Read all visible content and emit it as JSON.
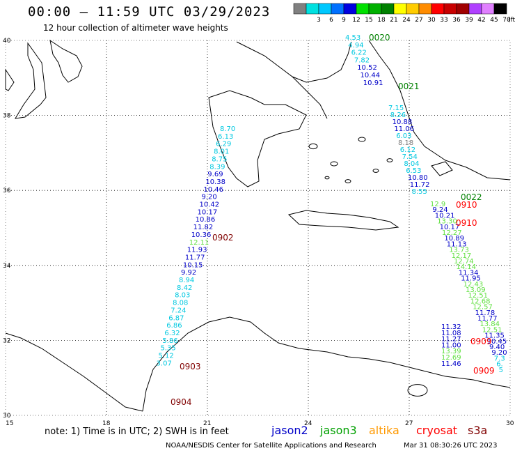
{
  "header": {
    "title": "00:00 – 11:59 UTC 03/29/2023",
    "subtitle": "12 hour collection of altimeter wave heights"
  },
  "legend_scale": {
    "unit": "(ft)",
    "bins": [
      {
        "label": "",
        "color": "#808080"
      },
      {
        "label": "3",
        "color": "#00e0e0"
      },
      {
        "label": "6",
        "color": "#00c8ff"
      },
      {
        "label": "9",
        "color": "#0070ff"
      },
      {
        "label": "12",
        "color": "#0000e0"
      },
      {
        "label": "15",
        "color": "#00e000"
      },
      {
        "label": "18",
        "color": "#00b000"
      },
      {
        "label": "21",
        "color": "#008000"
      },
      {
        "label": "24",
        "color": "#ffff00"
      },
      {
        "label": "27",
        "color": "#ffcc00"
      },
      {
        "label": "30",
        "color": "#ff8c00"
      },
      {
        "label": "33",
        "color": "#ff0000"
      },
      {
        "label": "36",
        "color": "#c80000"
      },
      {
        "label": "39",
        "color": "#a00000"
      },
      {
        "label": "42",
        "color": "#b040ff"
      },
      {
        "label": "45",
        "color": "#e080ff"
      },
      {
        "label": "70",
        "color": "#000000"
      }
    ]
  },
  "axes": {
    "lon_ticks": [
      "15",
      "18",
      "21",
      "24",
      "27",
      "30"
    ],
    "lat_ticks": [
      "40",
      "38",
      "36",
      "34",
      "32",
      "30"
    ]
  },
  "tracks": [
    {
      "name": "track-902",
      "time": "0902",
      "time_color": "#800000",
      "points": [
        {
          "v": "8.70",
          "c": "#00c8e0"
        },
        {
          "v": "6.13",
          "c": "#00c8e0"
        },
        {
          "v": "6.29",
          "c": "#00c8e0"
        },
        {
          "v": "8.01",
          "c": "#00c8e0"
        },
        {
          "v": "8.75",
          "c": "#00c8e0"
        },
        {
          "v": "8.39",
          "c": "#00c8e0"
        },
        {
          "v": "9.69",
          "c": "#0000c8"
        },
        {
          "v": "10.38",
          "c": "#0000c8"
        },
        {
          "v": "10.46",
          "c": "#0000c8"
        },
        {
          "v": "9.20",
          "c": "#0000c8"
        },
        {
          "v": "10.42",
          "c": "#0000c8"
        },
        {
          "v": "10.17",
          "c": "#0000c8"
        },
        {
          "v": "10.86",
          "c": "#0000c8"
        },
        {
          "v": "11.82",
          "c": "#0000c8"
        },
        {
          "v": "10.36",
          "c": "#0000c8"
        },
        {
          "v": "12.11",
          "c": "#60e040"
        },
        {
          "v": "11.93",
          "c": "#0000c8"
        },
        {
          "v": "11.77",
          "c": "#0000c8"
        },
        {
          "v": "10.15",
          "c": "#0000c8"
        },
        {
          "v": "9.92",
          "c": "#0000c8"
        },
        {
          "v": "8.94",
          "c": "#00c8e0"
        },
        {
          "v": "8.42",
          "c": "#00c8e0"
        },
        {
          "v": "8.03",
          "c": "#00c8e0"
        },
        {
          "v": "8.08",
          "c": "#00c8e0"
        },
        {
          "v": "7.24",
          "c": "#00c8e0"
        },
        {
          "v": "6.87",
          "c": "#00c8e0"
        },
        {
          "v": "6.86",
          "c": "#00c8e0"
        },
        {
          "v": "6.32",
          "c": "#00c8e0"
        },
        {
          "v": "5.86",
          "c": "#00c8e0"
        },
        {
          "v": "5.35",
          "c": "#00c8e0"
        },
        {
          "v": "5.12",
          "c": "#00c8e0"
        },
        {
          "v": "3.07",
          "c": "#00c8e0"
        }
      ]
    },
    {
      "name": "track-903",
      "time": "0903",
      "time_color": "#800000",
      "points": []
    },
    {
      "name": "track-904",
      "time": "0904",
      "time_color": "#800000",
      "points": []
    },
    {
      "name": "track-020",
      "time": "0020",
      "time_color": "#008000",
      "points": [
        {
          "v": "4.53",
          "c": "#00c8e0"
        },
        {
          "v": "4.94",
          "c": "#00c8e0"
        },
        {
          "v": "6.22",
          "c": "#00c8e0"
        },
        {
          "v": "7.82",
          "c": "#00c8e0"
        },
        {
          "v": "10.52",
          "c": "#0000c8"
        },
        {
          "v": "10.44",
          "c": "#0000c8"
        },
        {
          "v": "10.91",
          "c": "#0000c8"
        }
      ]
    },
    {
      "name": "track-021",
      "time": "0021",
      "time_color": "#008000",
      "points": [
        {
          "v": "7.15",
          "c": "#00c8e0"
        },
        {
          "v": "8.26",
          "c": "#00c8e0"
        },
        {
          "v": "10.88",
          "c": "#0000c8"
        },
        {
          "v": "11.06",
          "c": "#0000c8"
        },
        {
          "v": "6.03",
          "c": "#00c8e0"
        },
        {
          "v": "8.18",
          "c": "#808080"
        },
        {
          "v": "6.12",
          "c": "#00c8e0"
        },
        {
          "v": "7.54",
          "c": "#00c8e0"
        },
        {
          "v": "8.04",
          "c": "#00c8e0"
        },
        {
          "v": "6.53",
          "c": "#00c8e0"
        },
        {
          "v": "10.80",
          "c": "#0000c8"
        },
        {
          "v": "11.72",
          "c": "#0000c8"
        },
        {
          "v": "8.55",
          "c": "#00c8e0"
        }
      ]
    },
    {
      "name": "track-022",
      "time": "0022",
      "time_color": "#008000",
      "points": [
        {
          "v": "12.9",
          "c": "#60e040"
        },
        {
          "v": "9.24",
          "c": "#0000c8"
        },
        {
          "v": "10.21",
          "c": "#0000c8"
        },
        {
          "v": "13.30",
          "c": "#60e040"
        },
        {
          "v": "10.17",
          "c": "#0000c8"
        },
        {
          "v": "12.27",
          "c": "#60e040"
        },
        {
          "v": "10.89",
          "c": "#0000c8"
        },
        {
          "v": "11.13",
          "c": "#0000c8"
        },
        {
          "v": "13.73",
          "c": "#60e040"
        },
        {
          "v": "12.17",
          "c": "#60e040"
        },
        {
          "v": "12.74",
          "c": "#60e040"
        },
        {
          "v": "14.14",
          "c": "#60e040"
        },
        {
          "v": "11.34",
          "c": "#0000c8"
        },
        {
          "v": "11.95",
          "c": "#0000c8"
        },
        {
          "v": "12.43",
          "c": "#60e040"
        },
        {
          "v": "13.09",
          "c": "#60e040"
        },
        {
          "v": "12.51",
          "c": "#60e040"
        },
        {
          "v": "12.68",
          "c": "#60e040"
        },
        {
          "v": "12.57",
          "c": "#60e040"
        },
        {
          "v": "11.78",
          "c": "#0000c8"
        },
        {
          "v": "11.77",
          "c": "#0000c8"
        },
        {
          "v": "13.84",
          "c": "#60e040"
        },
        {
          "v": "12.51",
          "c": "#60e040"
        },
        {
          "v": "11.35",
          "c": "#0000c8"
        },
        {
          "v": "10.45",
          "c": "#0000c8"
        },
        {
          "v": "9.40",
          "c": "#0000c8"
        },
        {
          "v": "9.20",
          "c": "#0000c8"
        },
        {
          "v": "7.3",
          "c": "#00c8e0"
        },
        {
          "v": "6.",
          "c": "#00c8e0"
        },
        {
          "v": "5",
          "c": "#00c8e0"
        }
      ]
    },
    {
      "name": "track-910",
      "time": "0910",
      "time_color": "#ff0000",
      "points": []
    },
    {
      "name": "track-909",
      "time": "0909",
      "time_color": "#ff0000",
      "points": [
        {
          "v": "11.32",
          "c": "#0000c8"
        },
        {
          "v": "11.08",
          "c": "#0000c8"
        },
        {
          "v": "11.27",
          "c": "#0000c8"
        },
        {
          "v": "11.00",
          "c": "#0000c8"
        },
        {
          "v": "13.39",
          "c": "#60e040"
        },
        {
          "v": "12.69",
          "c": "#60e040"
        },
        {
          "v": "11.46",
          "c": "#0000c8"
        }
      ]
    }
  ],
  "footer": {
    "note": "note: 1) Time is in UTC; 2) SWH is in feet",
    "satellites": [
      {
        "name": "jason2",
        "color": "#0000c8"
      },
      {
        "name": "jason3",
        "color": "#00a000"
      },
      {
        "name": "altika",
        "color": "#ff9900"
      },
      {
        "name": "cryosat",
        "color": "#ff0000"
      },
      {
        "name": "s3a",
        "color": "#800000"
      }
    ],
    "credit": "NOAA/NESDIS Center for Satellite Applications and Research",
    "timestamp": "Mar 31 08:30:26 UTC 2023"
  }
}
